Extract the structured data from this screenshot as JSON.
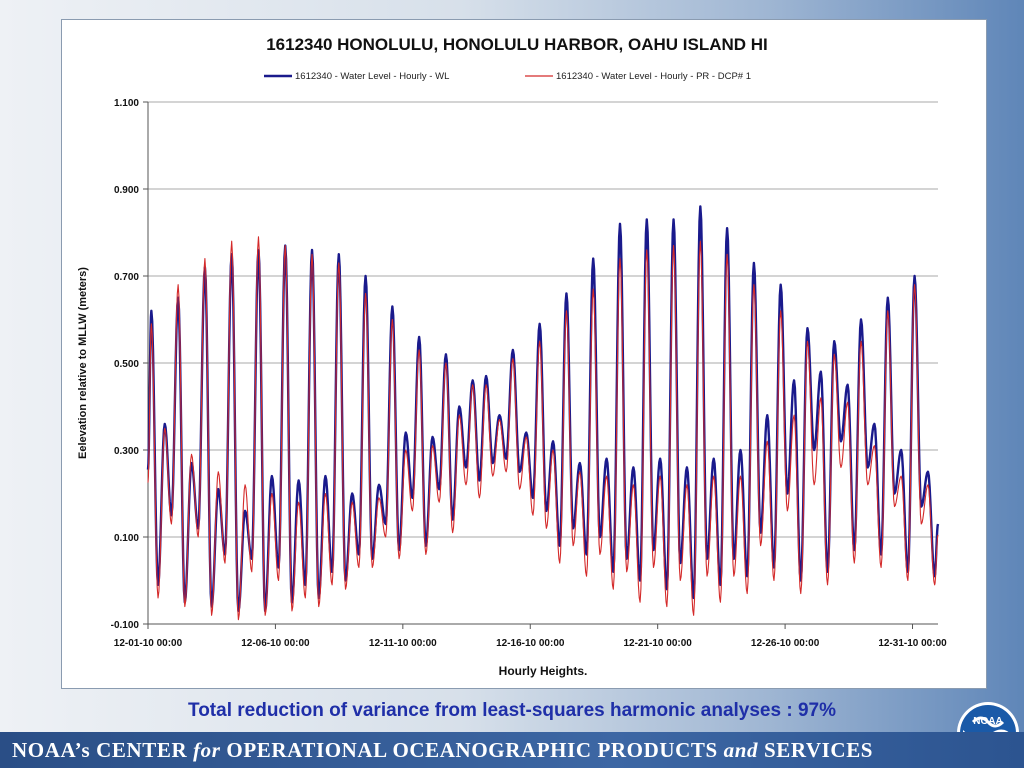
{
  "caption": "Total reduction of variance from least-squares harmonic analyses : 97%",
  "footer": {
    "part1": "NOAA’s  CENTER ",
    "for": "for",
    "part2": " OPERATIONAL  OCEANOGRAPHIC  PRODUCTS ",
    "and": "and",
    "part3": " SERVICES"
  },
  "logo": {
    "text": "NOAA",
    "icon": "noaa-logo-icon"
  },
  "colors": {
    "wl": "#1a1a8c",
    "pr": "#d42a2a",
    "grid": "#8c8c8c",
    "caption": "#1f2fa8"
  },
  "chart_data": {
    "type": "line",
    "title": "1612340  HONOLULU, HONOLULU HARBOR,  OAHU ISLAND HI",
    "xlabel": "Hourly Heights.",
    "ylabel": "Eelevation relative to MLLW (meters)",
    "ylim": [
      -0.1,
      1.1
    ],
    "yticks": [
      "-0.100",
      "0.100",
      "0.300",
      "0.500",
      "0.700",
      "0.900",
      "1.100"
    ],
    "xlim_day": [
      1,
      32
    ],
    "xticks": [
      "12-01-10 00:00",
      "12-06-10 00:00",
      "12-11-10 00:00",
      "12-16-10 00:00",
      "12-21-10 00:00",
      "12-26-10 00:00",
      "12-31-10 00:00"
    ],
    "grid": true,
    "legend_position": "top",
    "series": [
      {
        "name": "1612340 - Water Level - Hourly - WL",
        "color": "#1a1a8c",
        "hw": [
          0.62,
          0.36,
          0.65,
          0.27,
          0.72,
          0.21,
          0.75,
          0.16,
          0.76,
          0.24,
          0.77,
          0.23,
          0.76,
          0.24,
          0.75,
          0.2,
          0.7,
          0.22,
          0.63,
          0.34,
          0.56,
          0.33,
          0.52,
          0.4,
          0.46,
          0.47,
          0.38,
          0.53,
          0.34,
          0.59,
          0.32,
          0.66,
          0.27,
          0.74,
          0.28,
          0.82,
          0.26,
          0.83,
          0.28,
          0.83,
          0.26,
          0.86,
          0.28,
          0.81,
          0.3,
          0.73,
          0.38,
          0.68,
          0.46,
          0.58,
          0.48,
          0.55,
          0.45,
          0.6,
          0.36,
          0.65,
          0.3,
          0.7,
          0.25
        ],
        "lw": [
          -0.01,
          0.15,
          -0.05,
          0.12,
          -0.06,
          0.06,
          -0.07,
          0.05,
          -0.07,
          0.03,
          -0.05,
          -0.01,
          -0.04,
          0.02,
          0.0,
          0.06,
          0.05,
          0.13,
          0.07,
          0.19,
          0.08,
          0.21,
          0.14,
          0.26,
          0.23,
          0.27,
          0.28,
          0.25,
          0.19,
          0.16,
          0.08,
          0.12,
          0.06,
          0.1,
          0.02,
          0.05,
          0.0,
          0.07,
          -0.02,
          0.04,
          -0.04,
          0.05,
          -0.01,
          0.05,
          0.01,
          0.11,
          0.03,
          0.2,
          0.0,
          0.3,
          0.02,
          0.32,
          0.07,
          0.26,
          0.06,
          0.2,
          0.02,
          0.17,
          0.01
        ]
      },
      {
        "name": "1612340 - Water Level - Hourly - PR - DCP# 1",
        "color": "#d42a2a",
        "hw": [
          0.59,
          0.35,
          0.68,
          0.29,
          0.74,
          0.25,
          0.78,
          0.22,
          0.79,
          0.2,
          0.77,
          0.18,
          0.75,
          0.2,
          0.73,
          0.18,
          0.66,
          0.19,
          0.6,
          0.3,
          0.53,
          0.31,
          0.5,
          0.38,
          0.45,
          0.45,
          0.37,
          0.51,
          0.33,
          0.55,
          0.3,
          0.62,
          0.25,
          0.67,
          0.24,
          0.74,
          0.22,
          0.76,
          0.24,
          0.77,
          0.22,
          0.78,
          0.24,
          0.75,
          0.24,
          0.68,
          0.32,
          0.62,
          0.38,
          0.55,
          0.42,
          0.52,
          0.41,
          0.55,
          0.31,
          0.62,
          0.24,
          0.68,
          0.22
        ],
        "lw": [
          -0.04,
          0.13,
          -0.06,
          0.1,
          -0.08,
          0.04,
          -0.09,
          0.02,
          -0.08,
          0.0,
          -0.07,
          -0.04,
          -0.06,
          -0.01,
          -0.02,
          0.03,
          0.03,
          0.1,
          0.05,
          0.16,
          0.06,
          0.18,
          0.11,
          0.22,
          0.19,
          0.24,
          0.25,
          0.21,
          0.15,
          0.12,
          0.04,
          0.08,
          0.01,
          0.06,
          -0.02,
          0.02,
          -0.05,
          0.03,
          -0.06,
          0.0,
          -0.08,
          0.01,
          -0.05,
          0.01,
          -0.03,
          0.08,
          0.0,
          0.16,
          -0.03,
          0.22,
          -0.01,
          0.26,
          0.04,
          0.22,
          0.03,
          0.17,
          0.0,
          0.13,
          -0.01
        ]
      }
    ]
  }
}
